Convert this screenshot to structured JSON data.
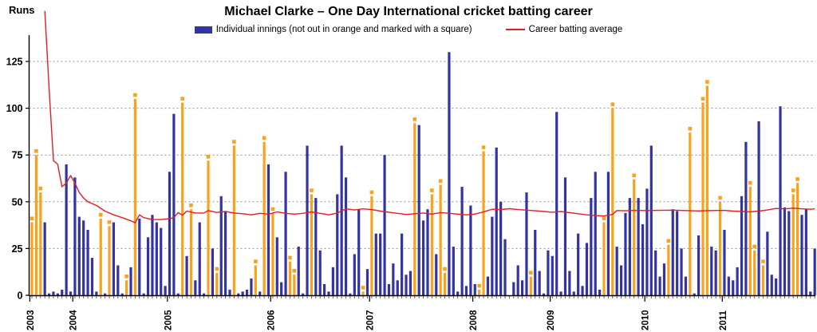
{
  "title": "Michael Clarke – One Day International cricket batting career",
  "legend": {
    "innings_label": "Individual innings (not out in orange and marked with a square)",
    "average_label": "Career batting average"
  },
  "y_axis": {
    "label": "Runs",
    "ticks": [
      0,
      25,
      50,
      75,
      100,
      125
    ]
  },
  "x_axis": {
    "years": [
      "2003",
      "2004",
      "2005",
      "2006",
      "2007",
      "2008",
      "2009",
      "2010",
      "2011"
    ]
  },
  "colors": {
    "bar_blue": "#3333A3",
    "bar_orange": "#FAA21B",
    "avg_line": "#E51D24",
    "gridline": "#909090",
    "axis": "#000000"
  },
  "chart_data": {
    "type": "bar",
    "title": "Michael Clarke – One Day International cricket batting career",
    "xlabel": "",
    "ylabel": "Runs",
    "ylim": [
      0,
      135
    ],
    "grid": true,
    "legend_position": "top",
    "series_note": "innings entries are [runs, not_out_flag]; not-out innings drawn orange with a square marker",
    "years": [
      {
        "year": "2003",
        "innings": [
          [
            39,
            1
          ],
          [
            75,
            1
          ],
          [
            55,
            1
          ],
          [
            39,
            0
          ],
          [
            1,
            0
          ],
          [
            2,
            0
          ],
          [
            1,
            0
          ],
          [
            3,
            0
          ],
          [
            70,
            0
          ],
          [
            2,
            0
          ]
        ]
      },
      {
        "year": "2004",
        "innings": [
          [
            63,
            0
          ],
          [
            42,
            0
          ],
          [
            40,
            0
          ],
          [
            35,
            0
          ],
          [
            20,
            0
          ],
          [
            2,
            0
          ],
          [
            41,
            1
          ],
          [
            1,
            0
          ],
          [
            37,
            1
          ],
          [
            39,
            0
          ],
          [
            16,
            0
          ],
          [
            1,
            0
          ],
          [
            8,
            1
          ],
          [
            15,
            0
          ],
          [
            105,
            1
          ],
          [
            41,
            0
          ],
          [
            1,
            0
          ],
          [
            31,
            0
          ],
          [
            43,
            0
          ],
          [
            39,
            0
          ],
          [
            36,
            0
          ],
          [
            5,
            0
          ]
        ]
      },
      {
        "year": "2005",
        "innings": [
          [
            66,
            0
          ],
          [
            97,
            0
          ],
          [
            1,
            0
          ],
          [
            103,
            1
          ],
          [
            21,
            0
          ],
          [
            46,
            1
          ],
          [
            8,
            0
          ],
          [
            39,
            0
          ],
          [
            1,
            0
          ],
          [
            72,
            1
          ],
          [
            25,
            0
          ],
          [
            12,
            1
          ],
          [
            53,
            0
          ],
          [
            45,
            0
          ],
          [
            3,
            0
          ],
          [
            80,
            1
          ],
          [
            1,
            0
          ],
          [
            2,
            0
          ],
          [
            3,
            0
          ],
          [
            9,
            0
          ],
          [
            16,
            1
          ],
          [
            2,
            0
          ],
          [
            82,
            1
          ],
          [
            70,
            0
          ]
        ]
      },
      {
        "year": "2006",
        "innings": [
          [
            44,
            1
          ],
          [
            31,
            0
          ],
          [
            7,
            0
          ],
          [
            66,
            0
          ],
          [
            18,
            1
          ],
          [
            11,
            1
          ],
          [
            26,
            0
          ],
          [
            1,
            0
          ],
          [
            80,
            0
          ],
          [
            54,
            1
          ],
          [
            52,
            0
          ],
          [
            24,
            0
          ],
          [
            6,
            0
          ],
          [
            2,
            0
          ],
          [
            15,
            0
          ],
          [
            54,
            0
          ],
          [
            80,
            0
          ],
          [
            63,
            0
          ],
          [
            1,
            0
          ],
          [
            22,
            0
          ],
          [
            46,
            0
          ],
          [
            2,
            1
          ],
          [
            14,
            0
          ]
        ]
      },
      {
        "year": "2007",
        "innings": [
          [
            53,
            1
          ],
          [
            33,
            0
          ],
          [
            33,
            0
          ],
          [
            75,
            0
          ],
          [
            6,
            0
          ],
          [
            17,
            0
          ],
          [
            8,
            0
          ],
          [
            33,
            0
          ],
          [
            11,
            0
          ],
          [
            13,
            0
          ],
          [
            92,
            1
          ],
          [
            91,
            0
          ],
          [
            40,
            0
          ],
          [
            46,
            0
          ],
          [
            54,
            1
          ],
          [
            22,
            0
          ],
          [
            59,
            1
          ],
          [
            12,
            1
          ],
          [
            130,
            0
          ],
          [
            26,
            0
          ],
          [
            2,
            0
          ],
          [
            58,
            0
          ],
          [
            5,
            0
          ],
          [
            48,
            0
          ]
        ]
      },
      {
        "year": "2008",
        "innings": [
          [
            6,
            0
          ],
          [
            3,
            1
          ],
          [
            77,
            1
          ],
          [
            10,
            0
          ],
          [
            42,
            0
          ],
          [
            79,
            0
          ],
          [
            50,
            0
          ],
          [
            30,
            0
          ],
          [
            0,
            0
          ],
          [
            7,
            0
          ],
          [
            16,
            0
          ],
          [
            8,
            0
          ],
          [
            55,
            0
          ],
          [
            10,
            1
          ],
          [
            35,
            0
          ],
          [
            13,
            0
          ],
          [
            1,
            0
          ],
          [
            24,
            0
          ]
        ]
      },
      {
        "year": "2009",
        "innings": [
          [
            21,
            0
          ],
          [
            98,
            0
          ],
          [
            2,
            0
          ],
          [
            63,
            0
          ],
          [
            13,
            0
          ],
          [
            2,
            0
          ],
          [
            33,
            0
          ],
          [
            5,
            0
          ],
          [
            28,
            0
          ],
          [
            52,
            0
          ],
          [
            66,
            0
          ],
          [
            3,
            0
          ],
          [
            39,
            1
          ],
          [
            66,
            0
          ],
          [
            100,
            1
          ],
          [
            26,
            0
          ],
          [
            16,
            0
          ],
          [
            44,
            0
          ],
          [
            52,
            0
          ],
          [
            62,
            1
          ],
          [
            52,
            0
          ],
          [
            38,
            0
          ]
        ]
      },
      {
        "year": "2010",
        "innings": [
          [
            57,
            0
          ],
          [
            80,
            0
          ],
          [
            24,
            0
          ],
          [
            10,
            0
          ],
          [
            17,
            0
          ],
          [
            27,
            1
          ],
          [
            46,
            0
          ],
          [
            45,
            0
          ],
          [
            25,
            0
          ],
          [
            10,
            0
          ],
          [
            87,
            1
          ],
          [
            1,
            0
          ],
          [
            32,
            0
          ],
          [
            103,
            1
          ],
          [
            112,
            1
          ],
          [
            26,
            0
          ],
          [
            24,
            0
          ],
          [
            50,
            1
          ]
        ]
      },
      {
        "year": "2011",
        "innings": [
          [
            35,
            0
          ],
          [
            10,
            0
          ],
          [
            8,
            0
          ],
          [
            15,
            0
          ],
          [
            53,
            0
          ],
          [
            82,
            0
          ],
          [
            58,
            1
          ],
          [
            24,
            1
          ],
          [
            93,
            0
          ],
          [
            16,
            1
          ],
          [
            34,
            0
          ],
          [
            11,
            0
          ],
          [
            9,
            0
          ],
          [
            101,
            0
          ],
          [
            47,
            0
          ],
          [
            45,
            0
          ],
          [
            54,
            1
          ],
          [
            60,
            1
          ],
          [
            43,
            0
          ],
          [
            46,
            0
          ],
          [
            2,
            0
          ],
          [
            25,
            0
          ]
        ]
      }
    ],
    "average_line": [
      [
        3,
        152
      ],
      [
        4,
        110
      ],
      [
        5,
        72
      ],
      [
        6,
        70
      ],
      [
        7,
        58
      ],
      [
        8,
        60
      ],
      [
        9,
        64
      ],
      [
        10,
        60
      ],
      [
        11,
        55
      ],
      [
        12,
        52
      ],
      [
        13,
        50
      ],
      [
        15,
        48
      ],
      [
        17,
        45
      ],
      [
        19,
        43
      ],
      [
        21,
        41.5
      ],
      [
        23,
        39.8
      ],
      [
        24,
        38.8
      ],
      [
        25,
        43
      ],
      [
        26,
        41.5
      ],
      [
        28,
        40.5
      ],
      [
        30,
        40.5
      ],
      [
        32,
        41
      ],
      [
        33,
        41.5
      ],
      [
        34,
        44.2
      ],
      [
        35,
        42.8
      ],
      [
        36,
        45
      ],
      [
        38,
        44
      ],
      [
        40,
        44
      ],
      [
        41,
        45.3
      ],
      [
        43,
        44.3
      ],
      [
        45,
        44.8
      ],
      [
        47,
        44
      ],
      [
        49,
        43.6
      ],
      [
        51,
        43
      ],
      [
        53,
        43.8
      ],
      [
        55,
        43.4
      ],
      [
        57,
        44.6
      ],
      [
        59,
        43.8
      ],
      [
        61,
        43.4
      ],
      [
        63,
        43.8
      ],
      [
        65,
        44.6
      ],
      [
        67,
        43.8
      ],
      [
        69,
        43
      ],
      [
        71,
        44
      ],
      [
        73,
        46.2
      ],
      [
        75,
        45.6
      ],
      [
        77,
        46.2
      ],
      [
        79,
        45.8
      ],
      [
        81,
        45
      ],
      [
        83,
        44.4
      ],
      [
        85,
        43.8
      ],
      [
        87,
        43.2
      ],
      [
        89,
        43.6
      ],
      [
        91,
        44
      ],
      [
        93,
        43.4
      ],
      [
        95,
        44.2
      ],
      [
        97,
        43.8
      ],
      [
        99,
        43.4
      ],
      [
        101,
        43
      ],
      [
        103,
        43.4
      ],
      [
        105,
        44.6
      ],
      [
        107,
        46
      ],
      [
        109,
        45.8
      ],
      [
        111,
        46.3
      ],
      [
        113,
        45.8
      ],
      [
        115,
        45.5
      ],
      [
        117,
        45.2
      ],
      [
        119,
        44.8
      ],
      [
        121,
        44.4
      ],
      [
        123,
        44.8
      ],
      [
        125,
        44.2
      ],
      [
        127,
        43.6
      ],
      [
        129,
        43
      ],
      [
        131,
        42.6
      ],
      [
        133,
        42.4
      ],
      [
        135,
        43.2
      ],
      [
        136,
        45.3
      ],
      [
        138,
        45.2
      ],
      [
        140,
        45.4
      ],
      [
        143,
        45.3
      ],
      [
        146,
        45.4
      ],
      [
        149,
        45.5
      ],
      [
        152,
        45.3
      ],
      [
        155,
        45.1
      ],
      [
        158,
        45.3
      ],
      [
        161,
        45.4
      ],
      [
        163,
        45
      ],
      [
        165,
        44.8
      ],
      [
        167,
        44.6
      ],
      [
        169,
        45
      ],
      [
        171,
        45.6
      ],
      [
        173,
        46.4
      ],
      [
        175,
        46.2
      ],
      [
        177,
        46.6
      ],
      [
        179,
        46.2
      ],
      [
        181,
        46
      ],
      [
        182,
        46.2
      ]
    ]
  }
}
